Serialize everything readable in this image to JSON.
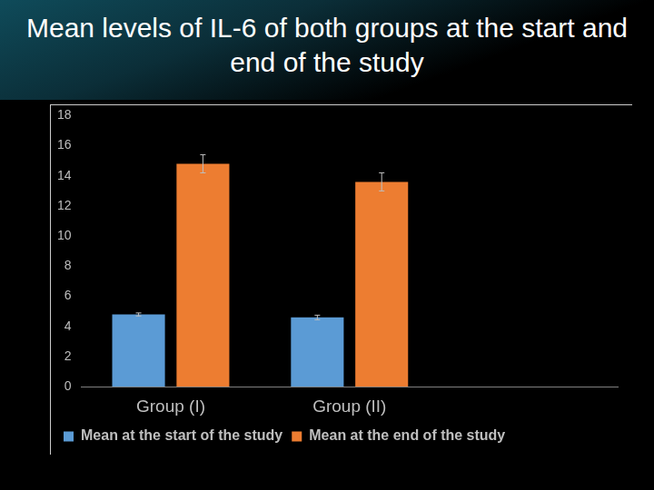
{
  "chart_data": {
    "type": "bar",
    "title": "Mean levels of IL-6 of both groups at the start and end of the study",
    "categories": [
      "Group (I)",
      "Group (II)",
      null
    ],
    "series": [
      {
        "name": "Mean at the start of the study",
        "color": "#5b9bd5",
        "values": [
          4.8,
          4.6,
          null
        ],
        "errors": [
          0.1,
          0.15,
          null
        ]
      },
      {
        "name": "Mean at the end of the study",
        "color": "#ed7d31",
        "values": [
          14.8,
          13.6,
          null
        ],
        "errors": [
          0.6,
          0.6,
          null
        ]
      }
    ],
    "ylim": [
      0,
      18
    ],
    "yticks": [
      0,
      2,
      4,
      6,
      8,
      10,
      12,
      14,
      16,
      18
    ],
    "grid": false,
    "legend": "bottom"
  }
}
